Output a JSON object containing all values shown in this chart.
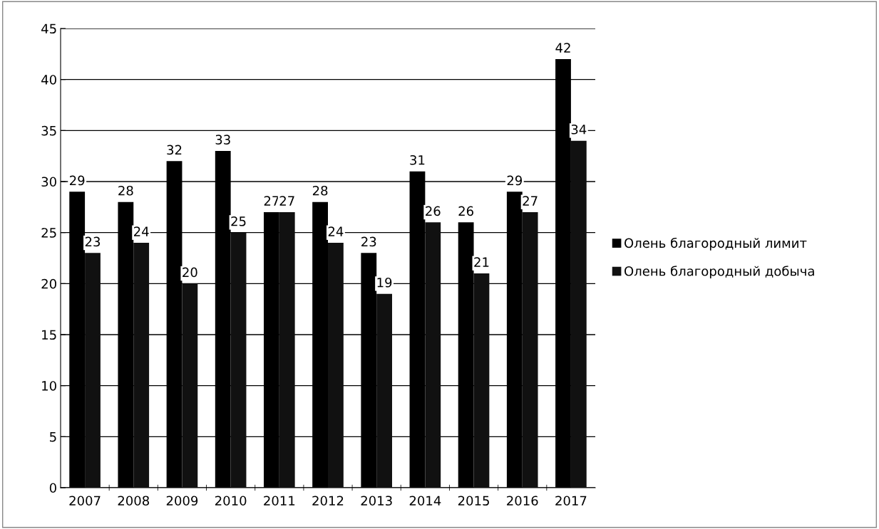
{
  "chart_data": {
    "type": "bar",
    "categories": [
      "2007",
      "2008",
      "2009",
      "2010",
      "2011",
      "2012",
      "2013",
      "2014",
      "2015",
      "2016",
      "2017"
    ],
    "series": [
      {
        "name": "Олень благородный лимит",
        "color": "#000000",
        "values": [
          29,
          28,
          32,
          33,
          27,
          28,
          23,
          31,
          26,
          29,
          42
        ]
      },
      {
        "name": "Олень благородный добыча",
        "color": "#111111",
        "values": [
          23,
          24,
          20,
          25,
          27,
          24,
          19,
          26,
          21,
          27,
          34
        ]
      }
    ],
    "ylim": [
      0,
      45
    ],
    "yticks": [
      0,
      5,
      10,
      15,
      20,
      25,
      30,
      35,
      40,
      45
    ],
    "grid": "y",
    "legend": "right",
    "data_labels": true
  }
}
